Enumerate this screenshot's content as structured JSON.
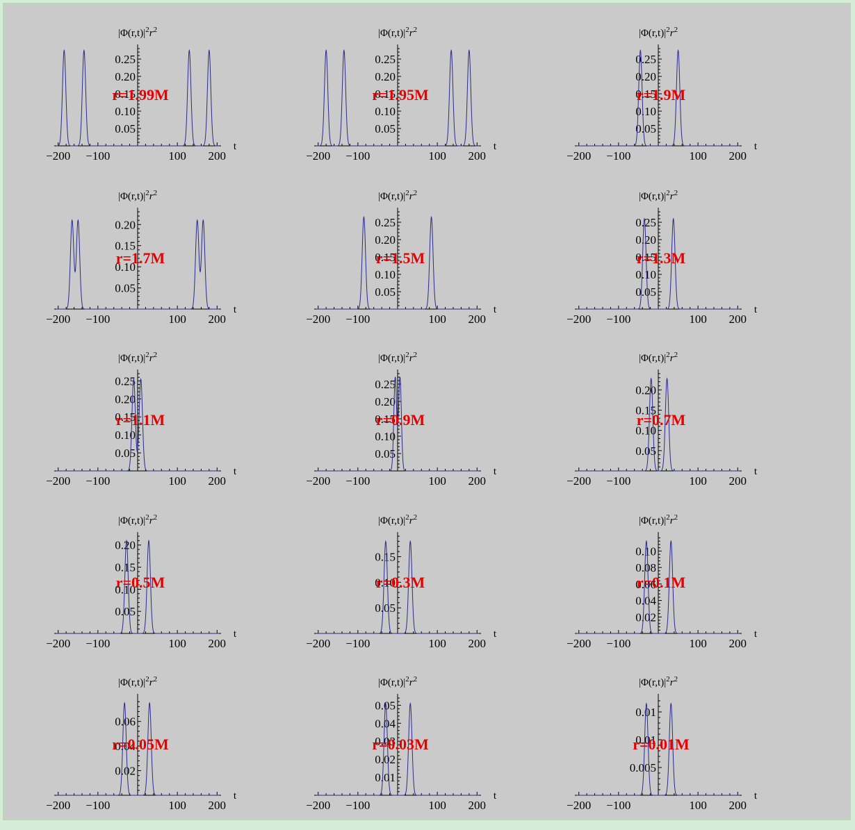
{
  "chart_data": [
    {
      "type": "line",
      "annotation": "r=1.99M",
      "ylabel": "|Φ(r,t)|²r²",
      "xlabel": "t",
      "xlim": [
        -210,
        210
      ],
      "ylim": [
        0,
        0.28
      ],
      "xticks": [
        -200,
        -100,
        100,
        200
      ],
      "yticks": [
        0.05,
        0.1,
        0.15,
        0.2,
        0.25
      ],
      "peaks": [
        {
          "t": -185,
          "h": 0.275,
          "w": 6
        },
        {
          "t": -135,
          "h": 0.275,
          "w": 6
        },
        {
          "t": 130,
          "h": 0.275,
          "w": 6
        },
        {
          "t": 180,
          "h": 0.275,
          "w": 6
        }
      ]
    },
    {
      "type": "line",
      "annotation": "r=1.95M",
      "ylabel": "|Φ(r,t)|²r²",
      "xlabel": "t",
      "xlim": [
        -210,
        210
      ],
      "ylim": [
        0,
        0.28
      ],
      "xticks": [
        -200,
        -100,
        100,
        200
      ],
      "yticks": [
        0.05,
        0.1,
        0.15,
        0.2,
        0.25
      ],
      "peaks": [
        {
          "t": -180,
          "h": 0.275,
          "w": 6
        },
        {
          "t": -135,
          "h": 0.275,
          "w": 6
        },
        {
          "t": 135,
          "h": 0.275,
          "w": 6
        },
        {
          "t": 180,
          "h": 0.275,
          "w": 6
        }
      ]
    },
    {
      "type": "line",
      "annotation": "r=1.9M",
      "ylabel": "|Φ(r,t)|²r²",
      "xlabel": "t",
      "xlim": [
        -210,
        210
      ],
      "ylim": [
        0,
        0.28
      ],
      "xticks": [
        -200,
        -100,
        100,
        200
      ],
      "yticks": [
        0.05,
        0.1,
        0.15,
        0.2,
        0.25
      ],
      "peaks": [
        {
          "t": -45,
          "h": 0.275,
          "w": 6
        },
        {
          "t": 50,
          "h": 0.275,
          "w": 6
        }
      ]
    },
    {
      "type": "line",
      "annotation": "r=1.7M",
      "ylabel": "|Φ(r,t)|²r²",
      "xlabel": "t",
      "xlim": [
        -210,
        210
      ],
      "ylim": [
        0,
        0.23
      ],
      "xticks": [
        -200,
        -100,
        100,
        200
      ],
      "yticks": [
        0.05,
        0.1,
        0.15,
        0.2
      ],
      "peaks": [
        {
          "t": -165,
          "h": 0.21,
          "w": 6
        },
        {
          "t": -150,
          "h": 0.21,
          "w": 6
        },
        {
          "t": 150,
          "h": 0.21,
          "w": 6
        },
        {
          "t": 165,
          "h": 0.21,
          "w": 6
        }
      ]
    },
    {
      "type": "line",
      "annotation": "r=1.5M",
      "ylabel": "|Φ(r,t)|²r²",
      "xlabel": "t",
      "xlim": [
        -210,
        210
      ],
      "ylim": [
        0,
        0.28
      ],
      "xticks": [
        -200,
        -100,
        100,
        200
      ],
      "yticks": [
        0.05,
        0.1,
        0.15,
        0.2,
        0.25
      ],
      "peaks": [
        {
          "t": -85,
          "h": 0.265,
          "w": 6
        },
        {
          "t": 85,
          "h": 0.265,
          "w": 6
        }
      ]
    },
    {
      "type": "line",
      "annotation": "r=1.3M",
      "ylabel": "|Φ(r,t)|²r²",
      "xlabel": "t",
      "xlim": [
        -210,
        210
      ],
      "ylim": [
        0,
        0.28
      ],
      "xticks": [
        -200,
        -100,
        100,
        200
      ],
      "yticks": [
        0.05,
        0.1,
        0.15,
        0.2,
        0.25
      ],
      "peaks": [
        {
          "t": -35,
          "h": 0.26,
          "w": 6
        },
        {
          "t": 38,
          "h": 0.26,
          "w": 6
        }
      ]
    },
    {
      "type": "line",
      "annotation": "r=1.1M",
      "ylabel": "|Φ(r,t)|²r²",
      "xlabel": "t",
      "xlim": [
        -210,
        210
      ],
      "ylim": [
        0,
        0.27
      ],
      "xticks": [
        -200,
        -100,
        100,
        200
      ],
      "yticks": [
        0.05,
        0.1,
        0.15,
        0.2,
        0.25
      ],
      "peaks": [
        {
          "t": -10,
          "h": 0.255,
          "w": 6
        },
        {
          "t": 8,
          "h": 0.255,
          "w": 6
        }
      ]
    },
    {
      "type": "line",
      "annotation": "r=0.9M",
      "ylabel": "|Φ(r,t)|²r²",
      "xlabel": "t",
      "xlim": [
        -210,
        210
      ],
      "ylim": [
        0,
        0.28
      ],
      "xticks": [
        -200,
        -100,
        100,
        200
      ],
      "yticks": [
        0.05,
        0.1,
        0.15,
        0.2,
        0.25
      ],
      "peaks": [
        {
          "t": -6,
          "h": 0.27,
          "w": 5
        },
        {
          "t": 6,
          "h": 0.27,
          "w": 5
        }
      ]
    },
    {
      "type": "line",
      "annotation": "r=0.7M",
      "ylabel": "|Φ(r,t)|²r²",
      "xlabel": "t",
      "xlim": [
        -210,
        210
      ],
      "ylim": [
        0,
        0.24
      ],
      "xticks": [
        -200,
        -100,
        100,
        200
      ],
      "yticks": [
        0.05,
        0.1,
        0.15,
        0.2
      ],
      "peaks": [
        {
          "t": -18,
          "h": 0.228,
          "w": 6
        },
        {
          "t": 22,
          "h": 0.228,
          "w": 6
        }
      ]
    },
    {
      "type": "line",
      "annotation": "r=0.5M",
      "ylabel": "|Φ(r,t)|²r²",
      "xlabel": "t",
      "xlim": [
        -210,
        210
      ],
      "ylim": [
        0,
        0.22
      ],
      "xticks": [
        -200,
        -100,
        100,
        200
      ],
      "yticks": [
        0.05,
        0.1,
        0.15,
        0.2
      ],
      "peaks": [
        {
          "t": -28,
          "h": 0.21,
          "w": 6
        },
        {
          "t": 28,
          "h": 0.21,
          "w": 6
        }
      ]
    },
    {
      "type": "line",
      "annotation": "r=0.3M",
      "ylabel": "|Φ(r,t)|²r²",
      "xlabel": "t",
      "xlim": [
        -210,
        210
      ],
      "ylim": [
        0,
        0.19
      ],
      "xticks": [
        -200,
        -100,
        100,
        200
      ],
      "yticks": [
        0.05,
        0.1,
        0.15
      ],
      "peaks": [
        {
          "t": -30,
          "h": 0.18,
          "w": 6
        },
        {
          "t": 32,
          "h": 0.18,
          "w": 6
        }
      ]
    },
    {
      "type": "line",
      "annotation": "r=0.1M",
      "ylabel": "|Φ(r,t)|²r²",
      "xlabel": "t",
      "xlim": [
        -210,
        210
      ],
      "ylim": [
        0,
        0.118
      ],
      "xticks": [
        -200,
        -100,
        100,
        200
      ],
      "yticks": [
        0.02,
        0.04,
        0.06,
        0.08,
        0.1
      ],
      "peaks": [
        {
          "t": -30,
          "h": 0.112,
          "w": 6
        },
        {
          "t": 32,
          "h": 0.112,
          "w": 6
        }
      ]
    },
    {
      "type": "line",
      "annotation": "r=0.05M",
      "ylabel": "|Φ(r,t)|²r²",
      "xlabel": "t",
      "xlim": [
        -210,
        210
      ],
      "ylim": [
        0,
        0.079
      ],
      "xticks": [
        -200,
        -100,
        100,
        200
      ],
      "yticks": [
        0.02,
        0.04,
        0.06
      ],
      "peaks": [
        {
          "t": -33,
          "h": 0.075,
          "w": 6
        },
        {
          "t": 30,
          "h": 0.075,
          "w": 6
        }
      ]
    },
    {
      "type": "line",
      "annotation": "r=0.03M",
      "ylabel": "|Φ(r,t)|²r²",
      "xlabel": "t",
      "xlim": [
        -210,
        210
      ],
      "ylim": [
        0,
        0.054
      ],
      "xticks": [
        -200,
        -100,
        100,
        200
      ],
      "yticks": [
        0.01,
        0.02,
        0.03,
        0.04,
        0.05
      ],
      "peaks": [
        {
          "t": -30,
          "h": 0.051,
          "w": 6
        },
        {
          "t": 32,
          "h": 0.051,
          "w": 6
        }
      ]
    },
    {
      "type": "line",
      "annotation": "r=0.01M",
      "ylabel": "|Φ(r,t)|²r²",
      "xlabel": "t",
      "xlim": [
        -210,
        210
      ],
      "ylim": [
        0,
        0.0175
      ],
      "xticks": [
        -200,
        -100,
        100,
        200
      ],
      "yticks": [
        0.005,
        0.01,
        0.015
      ],
      "peaks": [
        {
          "t": -30,
          "h": 0.0165,
          "w": 6
        },
        {
          "t": 32,
          "h": 0.0165,
          "w": 6
        }
      ]
    }
  ],
  "colors": {
    "curve": "#2a2a8c",
    "annotation": "#e60000",
    "background": "#cacaca"
  }
}
